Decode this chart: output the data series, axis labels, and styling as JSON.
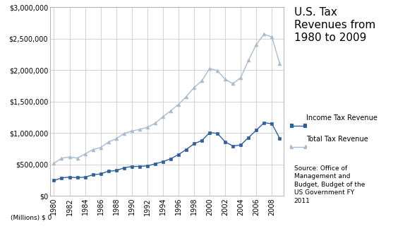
{
  "years": [
    1980,
    1981,
    1982,
    1983,
    1984,
    1985,
    1986,
    1987,
    1988,
    1989,
    1990,
    1991,
    1992,
    1993,
    1994,
    1995,
    1996,
    1997,
    1998,
    1999,
    2000,
    2001,
    2002,
    2003,
    2004,
    2005,
    2006,
    2007,
    2008,
    2009
  ],
  "income_tax": [
    244069,
    285917,
    297744,
    288938,
    298415,
    334531,
    349007,
    392557,
    401181,
    445690,
    466884,
    467827,
    476474,
    509680,
    543055,
    590244,
    656417,
    737466,
    828586,
    879480,
    1004462,
    994339,
    858345,
    793699,
    808959,
    927222,
    1043908,
    1163472,
    1145747,
    915308
  ],
  "total_tax": [
    517112,
    599272,
    617766,
    600562,
    666457,
    734057,
    769155,
    854143,
    909238,
    990691,
    1031969,
    1054988,
    1090453,
    1153537,
    1257673,
    1351830,
    1453062,
    1579292,
    1721798,
    1827454,
    2025218,
    1991200,
    1853136,
    1782322,
    1880114,
    2153611,
    2406869,
    2568000,
    2524000,
    2105000
  ],
  "income_tax_color": "#2E5F9E",
  "total_tax_color": "#A8BBCF",
  "background_color": "#FFFFFF",
  "grid_color": "#CCCCCC",
  "title": "U.S. Tax\nRevenues from\n1980 to 2009",
  "ylabel_bottom": "(Millions) $ 0",
  "legend_income": "Income Tax Revenue",
  "legend_total": "Total Tax Revenue",
  "source_text": "Source: Office of\nManagement and\nBudget, Budget of the\nUS Government FY\n2011",
  "ylim": [
    0,
    3000000
  ],
  "yticks": [
    0,
    500000,
    1000000,
    1500000,
    2000000,
    2500000,
    3000000
  ],
  "ytick_labels": [
    "$0",
    "$500,000",
    "$1,000,000",
    "$1,500,000",
    "$2,000,000",
    "$2,500,000",
    "$3,000,000"
  ]
}
